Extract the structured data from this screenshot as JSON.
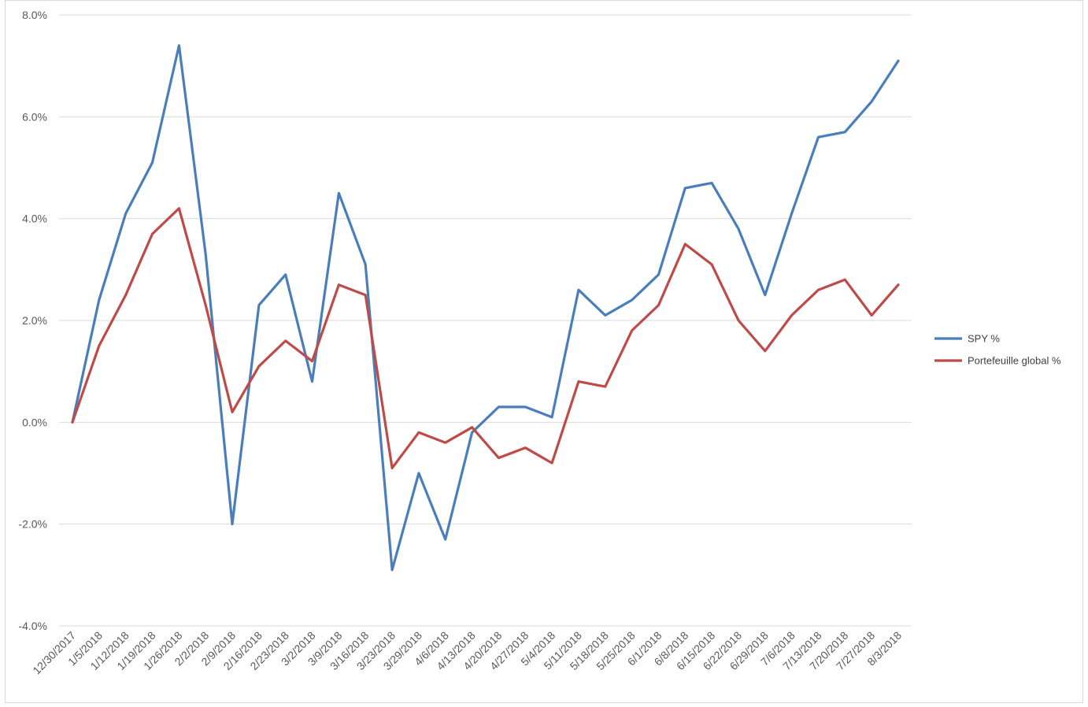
{
  "chart_data": {
    "type": "line",
    "title": "",
    "xlabel": "",
    "ylabel": "",
    "ylim": [
      -0.04,
      0.08
    ],
    "y_ticks": [
      {
        "v": -0.04,
        "label": "-4.0%"
      },
      {
        "v": -0.02,
        "label": "-2.0%"
      },
      {
        "v": 0.0,
        "label": "0.0%"
      },
      {
        "v": 0.02,
        "label": "2.0%"
      },
      {
        "v": 0.04,
        "label": "4.0%"
      },
      {
        "v": 0.06,
        "label": "6.0%"
      },
      {
        "v": 0.08,
        "label": "8.0%"
      }
    ],
    "grid": true,
    "legend_position": "right",
    "categories": [
      "12/30/2017",
      "1/5/2018",
      "1/12/2018",
      "1/19/2018",
      "1/26/2018",
      "2/2/2018",
      "2/9/2018",
      "2/16/2018",
      "2/23/2018",
      "3/2/2018",
      "3/9/2018",
      "3/16/2018",
      "3/23/2018",
      "3/29/2018",
      "4/6/2018",
      "4/13/2018",
      "4/20/2018",
      "4/27/2018",
      "5/4/2018",
      "5/11/2018",
      "5/18/2018",
      "5/25/2018",
      "6/1/2018",
      "6/8/2018",
      "6/15/2018",
      "6/22/2018",
      "6/29/2018",
      "7/6/2018",
      "7/13/2018",
      "7/20/2018",
      "7/27/2018",
      "8/3/2018"
    ],
    "series": [
      {
        "name": "SPY %",
        "color": "#4a7ebb",
        "values": [
          0.0,
          0.024,
          0.041,
          0.051,
          0.074,
          0.033,
          -0.02,
          0.023,
          0.029,
          0.008,
          0.045,
          0.031,
          -0.029,
          -0.01,
          -0.023,
          -0.002,
          0.003,
          0.003,
          0.001,
          0.026,
          0.021,
          0.024,
          0.029,
          0.046,
          0.047,
          0.038,
          0.025,
          0.041,
          0.056,
          0.057,
          0.063,
          0.071
        ]
      },
      {
        "name": "Portefeuille global %",
        "color": "#be4b48",
        "values": [
          0.0,
          0.015,
          0.025,
          0.037,
          0.042,
          0.023,
          0.002,
          0.011,
          0.016,
          0.012,
          0.027,
          0.025,
          -0.009,
          -0.002,
          -0.004,
          -0.001,
          -0.007,
          -0.005,
          -0.008,
          0.008,
          0.007,
          0.018,
          0.023,
          0.035,
          0.031,
          0.02,
          0.014,
          0.021,
          0.026,
          0.028,
          0.021,
          0.027
        ]
      }
    ]
  }
}
